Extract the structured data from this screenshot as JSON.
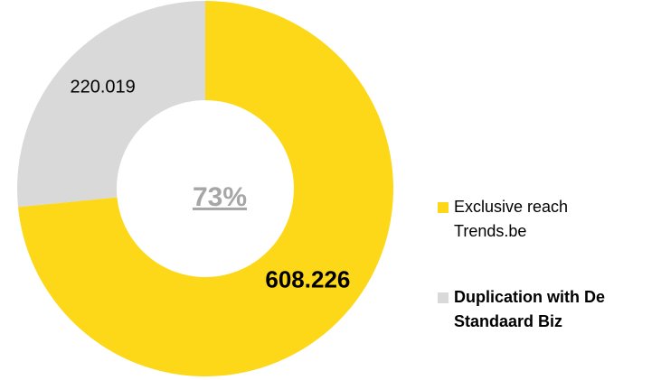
{
  "chart_data": {
    "type": "donut",
    "categories": [
      "Exclusive reach Trends.be",
      "Duplication with De Standaard Biz"
    ],
    "values": [
      608226,
      220019
    ],
    "value_labels": [
      "608.226",
      "220.019"
    ],
    "colors": [
      "#fdd819",
      "#d9d9d9"
    ],
    "center_label": "73%"
  }
}
